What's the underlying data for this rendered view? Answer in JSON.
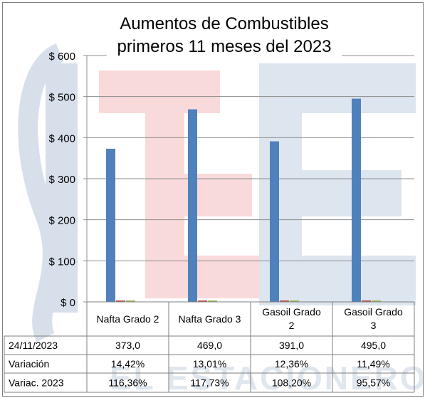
{
  "chart_data": {
    "type": "bar",
    "title_lines": [
      "Aumentos de Combustibles",
      "primeros 11 meses del 2023"
    ],
    "categories": [
      {
        "line1": "Nafta Grado 2",
        "line2": ""
      },
      {
        "line1": "Nafta Grado 3",
        "line2": ""
      },
      {
        "line1": "Gasoil Grado",
        "line2": "2"
      },
      {
        "line1": "Gasoil Grado",
        "line2": "3"
      }
    ],
    "series": [
      {
        "name": "24/11/2023",
        "values": [
          373.0,
          469.0,
          391.0,
          495.0
        ],
        "color": "#4f81bd"
      },
      {
        "name": "Variación",
        "values": [
          14.42,
          13.01,
          12.36,
          11.49
        ],
        "color": "#c0504d"
      },
      {
        "name": "Variac. 2023",
        "values": [
          116.36,
          117.73,
          108.2,
          95.57
        ],
        "color": "#9bbb59"
      }
    ],
    "yticks": [
      "$ 0",
      "$ 100",
      "$ 200",
      "$ 300",
      "$ 400",
      "$ 500",
      "$ 600"
    ],
    "ylim": [
      0,
      600
    ],
    "grid": true,
    "legend": "table below chart",
    "table": {
      "rows": [
        {
          "label": "24/11/2023",
          "cells": [
            "373,0",
            "469,0",
            "391,0",
            "495,0"
          ]
        },
        {
          "label": "Variación",
          "cells": [
            "14,42%",
            "13,01%",
            "12,36%",
            "11,49%"
          ]
        },
        {
          "label": "Variac. 2023",
          "cells": [
            "116,36%",
            "117,73%",
            "108,20%",
            "95,57%"
          ]
        }
      ]
    }
  },
  "watermark": {
    "text": "EL ESTACIONERO"
  }
}
